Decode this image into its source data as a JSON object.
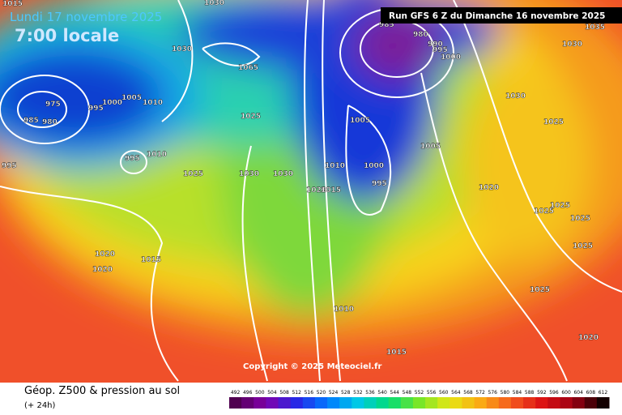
{
  "header": {
    "date": "Lundi 17 novembre 2025",
    "time": "7:00 locale",
    "run": "Run GFS 6 Z du Dimanche 16 novembre 2025"
  },
  "map": {
    "copyright": "Copyright © 2025 Meteociel.fr",
    "isobar_labels": [
      "1015",
      "1030",
      "1035",
      "985",
      "980",
      "990",
      "995",
      "1000",
      "1030",
      "1030",
      "1065",
      "975",
      "985",
      "980",
      "995",
      "1000",
      "1005",
      "1010",
      "1030",
      "1005",
      "1025",
      "1025",
      "995",
      "1010",
      "995",
      "1005",
      "1025",
      "1030",
      "1030",
      "1010",
      "1000",
      "995",
      "1020",
      "1015",
      "1020",
      "1025",
      "1025",
      "1025",
      "1025",
      "1020",
      "1015",
      "1020",
      "1025",
      "1010",
      "1015",
      "1020"
    ]
  },
  "footer": {
    "caption": "Géop. Z500 & pression au sol",
    "lead": "(+ 24h)"
  },
  "legend": {
    "values": [
      492,
      496,
      500,
      504,
      508,
      512,
      516,
      520,
      524,
      528,
      532,
      536,
      540,
      544,
      548,
      552,
      556,
      560,
      564,
      568,
      572,
      576,
      580,
      584,
      588,
      592,
      596,
      600,
      604,
      608,
      612
    ]
  }
}
